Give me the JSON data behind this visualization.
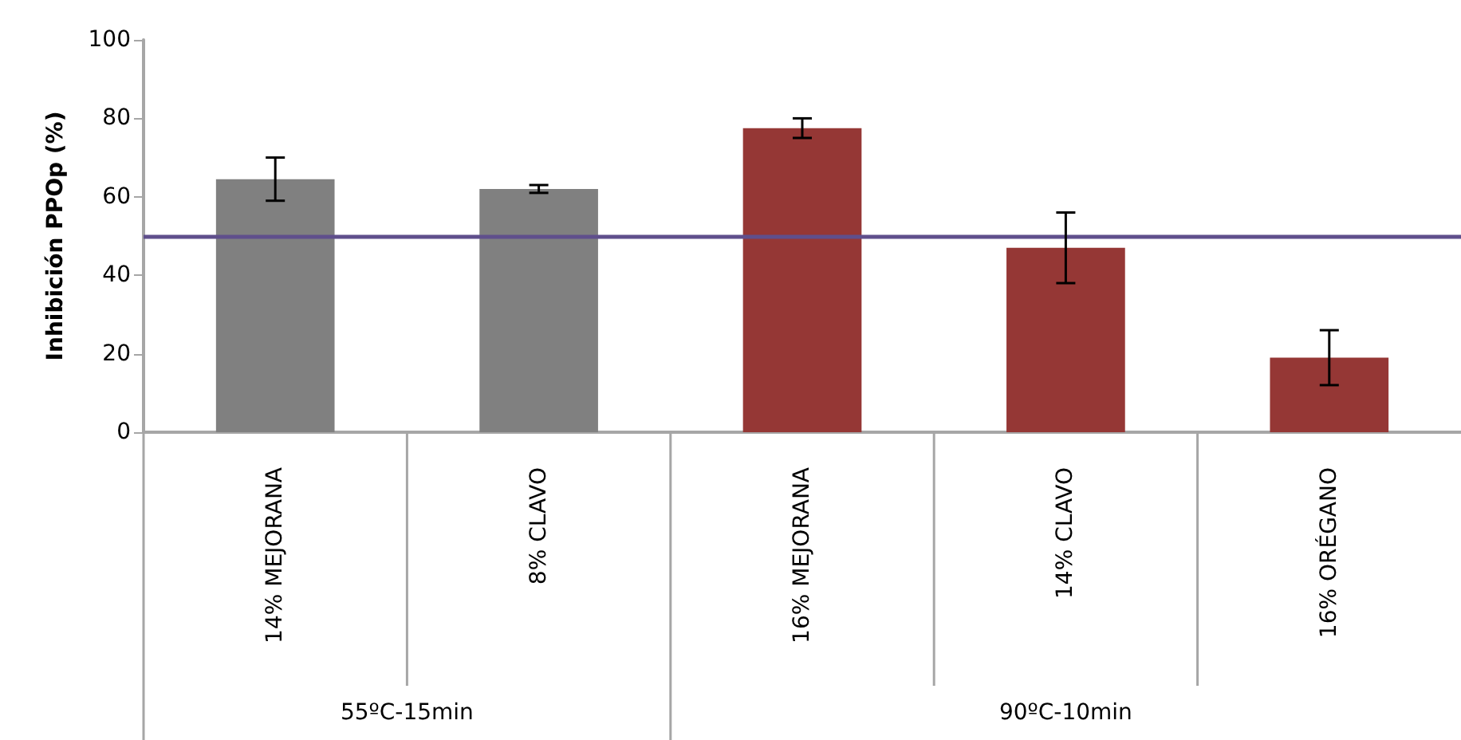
{
  "chart_data": {
    "type": "bar",
    "ylabel": "Inhibición PPOp (%)",
    "categories": [
      "14% MEJORANA",
      "8% CLAVO",
      "16% MEJORANA",
      "14% CLAVO",
      "16% ORÉGANO"
    ],
    "values": [
      64.5,
      62,
      77.5,
      47,
      19
    ],
    "errors": [
      5.5,
      1,
      2.5,
      9,
      7
    ],
    "colors": [
      "#808080",
      "#808080",
      "#953735",
      "#953735",
      "#953735"
    ],
    "ylim": [
      0,
      100
    ],
    "yticks": [
      0,
      20,
      40,
      60,
      80,
      100
    ],
    "grid": false,
    "ref_lines": [
      {
        "axis": "y",
        "value": 50,
        "color": "#5f4f8c",
        "line_style": "solid"
      }
    ],
    "annotations": [
      "55ºC-15min",
      "90ºC-10min"
    ]
  }
}
